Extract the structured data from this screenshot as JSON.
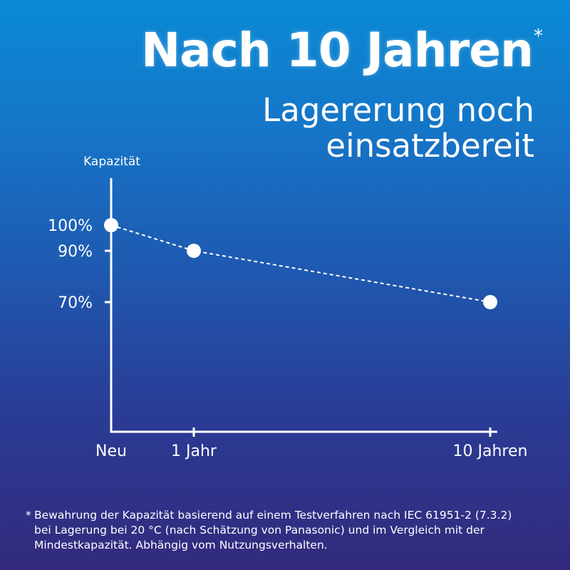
{
  "header": {
    "title": "Nach 10 Jahren",
    "asterisk": "*",
    "subtitle_line1": "Lagererung noch",
    "subtitle_line2": "einsatzbereit"
  },
  "chart_data": {
    "type": "line",
    "ylabel": "Kapazität",
    "xlabel": "",
    "x_categories": [
      "Neu",
      "1 Jahr",
      "10 Jahren"
    ],
    "x_values": [
      0,
      1,
      10
    ],
    "y_values": [
      100,
      90,
      70
    ],
    "y_ticks": [
      {
        "value": 100,
        "label": "100%"
      },
      {
        "value": 90,
        "label": "90%"
      },
      {
        "value": 70,
        "label": "70%"
      }
    ],
    "line_style": "dashed",
    "grid": false,
    "colors": {
      "line": "#ffffff",
      "points": "#ffffff",
      "axes": "#ffffff"
    }
  },
  "footnote": {
    "mark": "*",
    "line1": "Bewahrung der Kapazität basierend auf einem Testverfahren nach IEC 61951-2 (7.3.2)",
    "line2": "bei Lagerung bei 20 °C (nach Schätzung von Panasonic) und im Vergleich mit der",
    "line3": "Mindestkapazität. Abhängig vom Nutzungsverhalten."
  }
}
